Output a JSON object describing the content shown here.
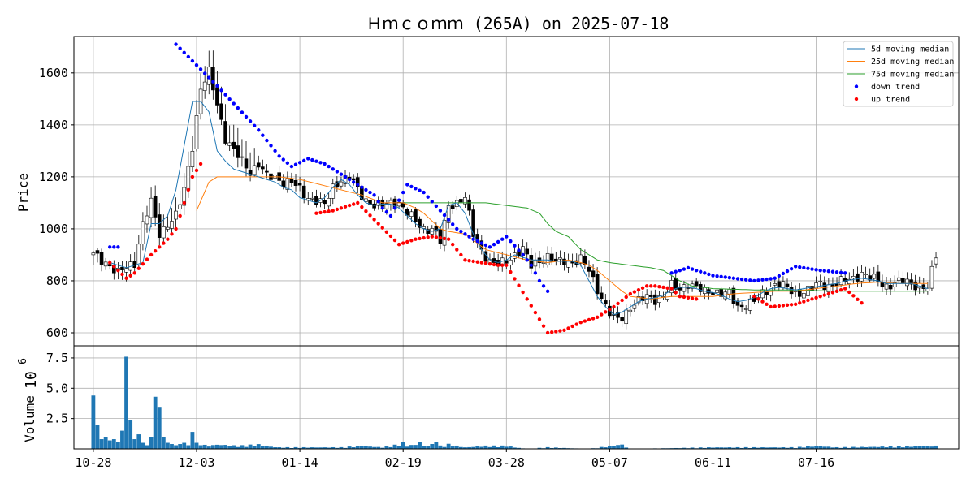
{
  "chart_data": {
    "type": "candlestick",
    "title": "Ｈｍｃｏｍｍ (265A) on 2025-07-18",
    "ylabel_price": "Price",
    "ylabel_volume": "Volume",
    "volume_exponent": "10",
    "volume_exponent_power": "6",
    "x_ticks": [
      "10-28",
      "12-03",
      "01-14",
      "02-19",
      "03-28",
      "05-07",
      "06-11",
      "07-16"
    ],
    "x_tick_index": [
      0,
      25,
      50,
      75,
      100,
      125,
      150,
      175
    ],
    "price_ticks": [
      600,
      800,
      1000,
      1200,
      1400,
      1600
    ],
    "price_ylim": [
      550,
      1740
    ],
    "volume_ticks": [
      2.5,
      5.0,
      7.5
    ],
    "volume_tick_labels": [
      "2.5",
      "5.0",
      "7.5"
    ],
    "volume_ylim": [
      0,
      8.5
    ],
    "grid": true,
    "legend_position": "top-right",
    "legend": [
      {
        "label": " 5d moving median",
        "color": "#1f77b4",
        "kind": "line"
      },
      {
        "label": "25d moving median",
        "color": "#ff7f0e",
        "kind": "line"
      },
      {
        "label": "75d moving median",
        "color": "#2ca02c",
        "kind": "line"
      },
      {
        "label": "down trend",
        "color": "#0000ff",
        "kind": "dot"
      },
      {
        "label": "up trend",
        "color": "#ff0000",
        "kind": "dot"
      }
    ],
    "close_key": [
      [
        0,
        900
      ],
      [
        2,
        880
      ],
      [
        4,
        860
      ],
      [
        6,
        830
      ],
      [
        8,
        850
      ],
      [
        10,
        870
      ],
      [
        12,
        1020
      ],
      [
        14,
        1100
      ],
      [
        16,
        980
      ],
      [
        18,
        1020
      ],
      [
        20,
        1050
      ],
      [
        22,
        1150
      ],
      [
        24,
        1320
      ],
      [
        26,
        1540
      ],
      [
        28,
        1600
      ],
      [
        30,
        1480
      ],
      [
        32,
        1350
      ],
      [
        34,
        1300
      ],
      [
        36,
        1260
      ],
      [
        38,
        1220
      ],
      [
        40,
        1250
      ],
      [
        42,
        1200
      ],
      [
        44,
        1200
      ],
      [
        46,
        1180
      ],
      [
        48,
        1180
      ],
      [
        50,
        1150
      ],
      [
        52,
        1120
      ],
      [
        54,
        1110
      ],
      [
        56,
        1090
      ],
      [
        58,
        1160
      ],
      [
        60,
        1190
      ],
      [
        62,
        1200
      ],
      [
        64,
        1150
      ],
      [
        66,
        1110
      ],
      [
        68,
        1090
      ],
      [
        70,
        1090
      ],
      [
        72,
        1100
      ],
      [
        74,
        1100
      ],
      [
        76,
        1060
      ],
      [
        78,
        1030
      ],
      [
        80,
        1000
      ],
      [
        82,
        1000
      ],
      [
        84,
        950
      ],
      [
        86,
        1090
      ],
      [
        88,
        1100
      ],
      [
        90,
        1120
      ],
      [
        92,
        980
      ],
      [
        94,
        920
      ],
      [
        96,
        870
      ],
      [
        98,
        860
      ],
      [
        100,
        880
      ],
      [
        102,
        900
      ],
      [
        104,
        920
      ],
      [
        106,
        860
      ],
      [
        108,
        880
      ],
      [
        110,
        890
      ],
      [
        112,
        870
      ],
      [
        114,
        880
      ],
      [
        116,
        870
      ],
      [
        118,
        880
      ],
      [
        120,
        840
      ],
      [
        122,
        770
      ],
      [
        124,
        700
      ],
      [
        126,
        650
      ],
      [
        128,
        660
      ],
      [
        130,
        700
      ],
      [
        132,
        720
      ],
      [
        134,
        740
      ],
      [
        136,
        730
      ],
      [
        138,
        740
      ],
      [
        140,
        780
      ],
      [
        142,
        770
      ],
      [
        144,
        790
      ],
      [
        146,
        770
      ],
      [
        148,
        760
      ],
      [
        150,
        760
      ],
      [
        152,
        750
      ],
      [
        154,
        750
      ],
      [
        156,
        700
      ],
      [
        158,
        710
      ],
      [
        160,
        720
      ],
      [
        162,
        750
      ],
      [
        164,
        780
      ],
      [
        166,
        790
      ],
      [
        168,
        770
      ],
      [
        170,
        750
      ],
      [
        172,
        760
      ],
      [
        174,
        770
      ],
      [
        176,
        790
      ],
      [
        178,
        780
      ],
      [
        180,
        790
      ],
      [
        182,
        800
      ],
      [
        184,
        810
      ],
      [
        186,
        830
      ],
      [
        188,
        810
      ],
      [
        190,
        800
      ],
      [
        192,
        780
      ],
      [
        194,
        790
      ],
      [
        196,
        800
      ],
      [
        198,
        790
      ],
      [
        200,
        780
      ],
      [
        202,
        770
      ],
      [
        204,
        900
      ]
    ],
    "med5_key": [
      [
        0,
        null
      ],
      [
        4,
        870
      ],
      [
        8,
        850
      ],
      [
        10,
        860
      ],
      [
        12,
        870
      ],
      [
        14,
        1020
      ],
      [
        16,
        1020
      ],
      [
        18,
        1050
      ],
      [
        20,
        1150
      ],
      [
        22,
        1320
      ],
      [
        24,
        1490
      ],
      [
        26,
        1490
      ],
      [
        28,
        1450
      ],
      [
        30,
        1300
      ],
      [
        32,
        1260
      ],
      [
        34,
        1230
      ],
      [
        36,
        1220
      ],
      [
        38,
        1210
      ],
      [
        40,
        1200
      ],
      [
        42,
        1190
      ],
      [
        44,
        1180
      ],
      [
        46,
        1160
      ],
      [
        48,
        1150
      ],
      [
        50,
        1120
      ],
      [
        52,
        1110
      ],
      [
        54,
        1100
      ],
      [
        56,
        1120
      ],
      [
        58,
        1160
      ],
      [
        60,
        1190
      ],
      [
        62,
        1170
      ],
      [
        64,
        1130
      ],
      [
        66,
        1100
      ],
      [
        68,
        1090
      ],
      [
        70,
        1095
      ],
      [
        72,
        1095
      ],
      [
        74,
        1080
      ],
      [
        76,
        1050
      ],
      [
        78,
        1020
      ],
      [
        80,
        1000
      ],
      [
        82,
        990
      ],
      [
        84,
        1000
      ],
      [
        86,
        1090
      ],
      [
        88,
        1100
      ],
      [
        90,
        1060
      ],
      [
        92,
        980
      ],
      [
        94,
        920
      ],
      [
        96,
        880
      ],
      [
        98,
        870
      ],
      [
        100,
        880
      ],
      [
        102,
        900
      ],
      [
        104,
        890
      ],
      [
        106,
        880
      ],
      [
        108,
        880
      ],
      [
        110,
        880
      ],
      [
        112,
        875
      ],
      [
        114,
        875
      ],
      [
        116,
        875
      ],
      [
        118,
        860
      ],
      [
        120,
        800
      ],
      [
        122,
        740
      ],
      [
        124,
        700
      ],
      [
        126,
        670
      ],
      [
        128,
        680
      ],
      [
        130,
        700
      ],
      [
        132,
        720
      ],
      [
        134,
        730
      ],
      [
        136,
        735
      ],
      [
        138,
        745
      ],
      [
        140,
        765
      ],
      [
        142,
        775
      ],
      [
        144,
        775
      ],
      [
        146,
        770
      ],
      [
        148,
        760
      ],
      [
        150,
        755
      ],
      [
        152,
        745
      ],
      [
        154,
        730
      ],
      [
        156,
        720
      ],
      [
        158,
        725
      ],
      [
        160,
        735
      ],
      [
        162,
        755
      ],
      [
        164,
        770
      ],
      [
        166,
        775
      ],
      [
        168,
        770
      ],
      [
        170,
        765
      ],
      [
        172,
        770
      ],
      [
        174,
        775
      ],
      [
        176,
        780
      ],
      [
        178,
        785
      ],
      [
        180,
        790
      ],
      [
        182,
        800
      ],
      [
        184,
        805
      ],
      [
        186,
        810
      ],
      [
        188,
        805
      ],
      [
        190,
        800
      ],
      [
        192,
        790
      ],
      [
        194,
        790
      ],
      [
        196,
        790
      ],
      [
        198,
        790
      ],
      [
        200,
        780
      ],
      [
        202,
        770
      ]
    ],
    "med25_key": [
      [
        0,
        null
      ],
      [
        24,
        null
      ],
      [
        25,
        1070
      ],
      [
        28,
        1180
      ],
      [
        30,
        1200
      ],
      [
        40,
        1200
      ],
      [
        45,
        1200
      ],
      [
        50,
        1190
      ],
      [
        55,
        1170
      ],
      [
        60,
        1150
      ],
      [
        65,
        1130
      ],
      [
        70,
        1100
      ],
      [
        75,
        1100
      ],
      [
        78,
        1080
      ],
      [
        80,
        1060
      ],
      [
        82,
        1030
      ],
      [
        84,
        1000
      ],
      [
        86,
        990
      ],
      [
        90,
        980
      ],
      [
        95,
        920
      ],
      [
        100,
        900
      ],
      [
        105,
        880
      ],
      [
        110,
        870
      ],
      [
        115,
        880
      ],
      [
        118,
        870
      ],
      [
        120,
        860
      ],
      [
        122,
        840
      ],
      [
        125,
        800
      ],
      [
        128,
        760
      ],
      [
        130,
        740
      ],
      [
        135,
        730
      ],
      [
        140,
        740
      ],
      [
        145,
        740
      ],
      [
        150,
        740
      ],
      [
        155,
        750
      ],
      [
        160,
        755
      ],
      [
        165,
        760
      ],
      [
        170,
        760
      ],
      [
        175,
        770
      ],
      [
        180,
        780
      ],
      [
        185,
        790
      ],
      [
        190,
        795
      ],
      [
        195,
        790
      ],
      [
        200,
        790
      ],
      [
        202,
        790
      ]
    ],
    "med75_key": [
      [
        0,
        null
      ],
      [
        74,
        null
      ],
      [
        75,
        1100
      ],
      [
        95,
        1100
      ],
      [
        100,
        1090
      ],
      [
        105,
        1080
      ],
      [
        108,
        1060
      ],
      [
        110,
        1020
      ],
      [
        112,
        990
      ],
      [
        115,
        970
      ],
      [
        118,
        920
      ],
      [
        120,
        900
      ],
      [
        122,
        880
      ],
      [
        125,
        870
      ],
      [
        130,
        860
      ],
      [
        135,
        850
      ],
      [
        138,
        840
      ],
      [
        140,
        820
      ],
      [
        142,
        800
      ],
      [
        145,
        780
      ],
      [
        150,
        770
      ],
      [
        160,
        765
      ],
      [
        170,
        765
      ],
      [
        180,
        760
      ],
      [
        190,
        760
      ],
      [
        200,
        760
      ],
      [
        202,
        760
      ]
    ],
    "down_key": [
      [
        4,
        930
      ],
      [
        6,
        930
      ],
      [
        20,
        1710
      ],
      [
        30,
        1550
      ],
      [
        40,
        1380
      ],
      [
        45,
        1280
      ],
      [
        48,
        1240
      ],
      [
        52,
        1270
      ],
      [
        56,
        1250
      ],
      [
        60,
        1210
      ],
      [
        64,
        1170
      ],
      [
        68,
        1130
      ],
      [
        70,
        1080
      ],
      [
        72,
        1050
      ],
      [
        76,
        1170
      ],
      [
        80,
        1140
      ],
      [
        84,
        1070
      ],
      [
        88,
        1000
      ],
      [
        92,
        960
      ],
      [
        96,
        930
      ],
      [
        100,
        970
      ],
      [
        104,
        900
      ],
      [
        106,
        860
      ],
      [
        108,
        800
      ],
      [
        110,
        760
      ],
      [
        140,
        830
      ],
      [
        144,
        850
      ],
      [
        150,
        820
      ],
      [
        160,
        800
      ],
      [
        165,
        810
      ],
      [
        170,
        855
      ],
      [
        176,
        840
      ],
      [
        182,
        830
      ]
    ],
    "up_key": [
      [
        4,
        870
      ],
      [
        8,
        810
      ],
      [
        10,
        830
      ],
      [
        14,
        900
      ],
      [
        18,
        960
      ],
      [
        20,
        1000
      ],
      [
        22,
        1100
      ],
      [
        24,
        1200
      ],
      [
        26,
        1250
      ],
      [
        54,
        1060
      ],
      [
        58,
        1070
      ],
      [
        60,
        1080
      ],
      [
        64,
        1100
      ],
      [
        74,
        940
      ],
      [
        78,
        960
      ],
      [
        82,
        970
      ],
      [
        86,
        960
      ],
      [
        90,
        880
      ],
      [
        94,
        870
      ],
      [
        98,
        860
      ],
      [
        100,
        860
      ],
      [
        110,
        600
      ],
      [
        114,
        610
      ],
      [
        118,
        640
      ],
      [
        122,
        660
      ],
      [
        126,
        700
      ],
      [
        130,
        750
      ],
      [
        134,
        780
      ],
      [
        136,
        780
      ],
      [
        140,
        770
      ],
      [
        142,
        740
      ],
      [
        146,
        730
      ],
      [
        160,
        740
      ],
      [
        164,
        700
      ],
      [
        170,
        710
      ],
      [
        176,
        740
      ],
      [
        180,
        760
      ],
      [
        182,
        770
      ],
      [
        186,
        715
      ]
    ],
    "vol_key": [
      [
        0,
        4.4
      ],
      [
        1,
        2.0
      ],
      [
        2,
        0.8
      ],
      [
        3,
        1.0
      ],
      [
        4,
        0.7
      ],
      [
        5,
        0.8
      ],
      [
        6,
        0.6
      ],
      [
        7,
        1.5
      ],
      [
        8,
        7.6
      ],
      [
        9,
        2.4
      ],
      [
        10,
        0.8
      ],
      [
        11,
        1.2
      ],
      [
        12,
        0.5
      ],
      [
        13,
        0.3
      ],
      [
        14,
        1.0
      ],
      [
        15,
        4.3
      ],
      [
        16,
        3.4
      ],
      [
        17,
        1.0
      ],
      [
        18,
        0.5
      ],
      [
        19,
        0.4
      ],
      [
        20,
        0.3
      ],
      [
        21,
        0.4
      ],
      [
        22,
        0.5
      ],
      [
        23,
        0.3
      ],
      [
        24,
        1.4
      ],
      [
        25,
        0.5
      ],
      [
        26,
        0.3
      ],
      [
        28,
        0.2
      ],
      [
        30,
        0.3
      ],
      [
        35,
        0.2
      ],
      [
        40,
        0.3
      ],
      [
        41,
        0.2
      ],
      [
        45,
        0.1
      ],
      [
        50,
        0.1
      ],
      [
        60,
        0.1
      ],
      [
        65,
        0.2
      ],
      [
        70,
        0.1
      ],
      [
        72,
        0.2
      ],
      [
        74,
        0.3
      ],
      [
        75,
        0.4
      ],
      [
        76,
        0.2
      ],
      [
        78,
        0.3
      ],
      [
        79,
        0.5
      ],
      [
        80,
        0.2
      ],
      [
        82,
        0.3
      ],
      [
        83,
        0.7
      ],
      [
        84,
        0.2
      ],
      [
        86,
        0.3
      ],
      [
        90,
        0.1
      ],
      [
        95,
        0.2
      ],
      [
        100,
        0.2
      ],
      [
        102,
        0.1
      ],
      [
        105,
        0.0
      ],
      [
        110,
        0.1
      ],
      [
        120,
        0.0
      ],
      [
        128,
        0.3
      ],
      [
        129,
        0.1
      ],
      [
        130,
        0.0
      ],
      [
        150,
        0.1
      ],
      [
        160,
        0.1
      ],
      [
        170,
        0.1
      ],
      [
        175,
        0.2
      ],
      [
        180,
        0.1
      ],
      [
        204,
        0.2
      ]
    ]
  }
}
